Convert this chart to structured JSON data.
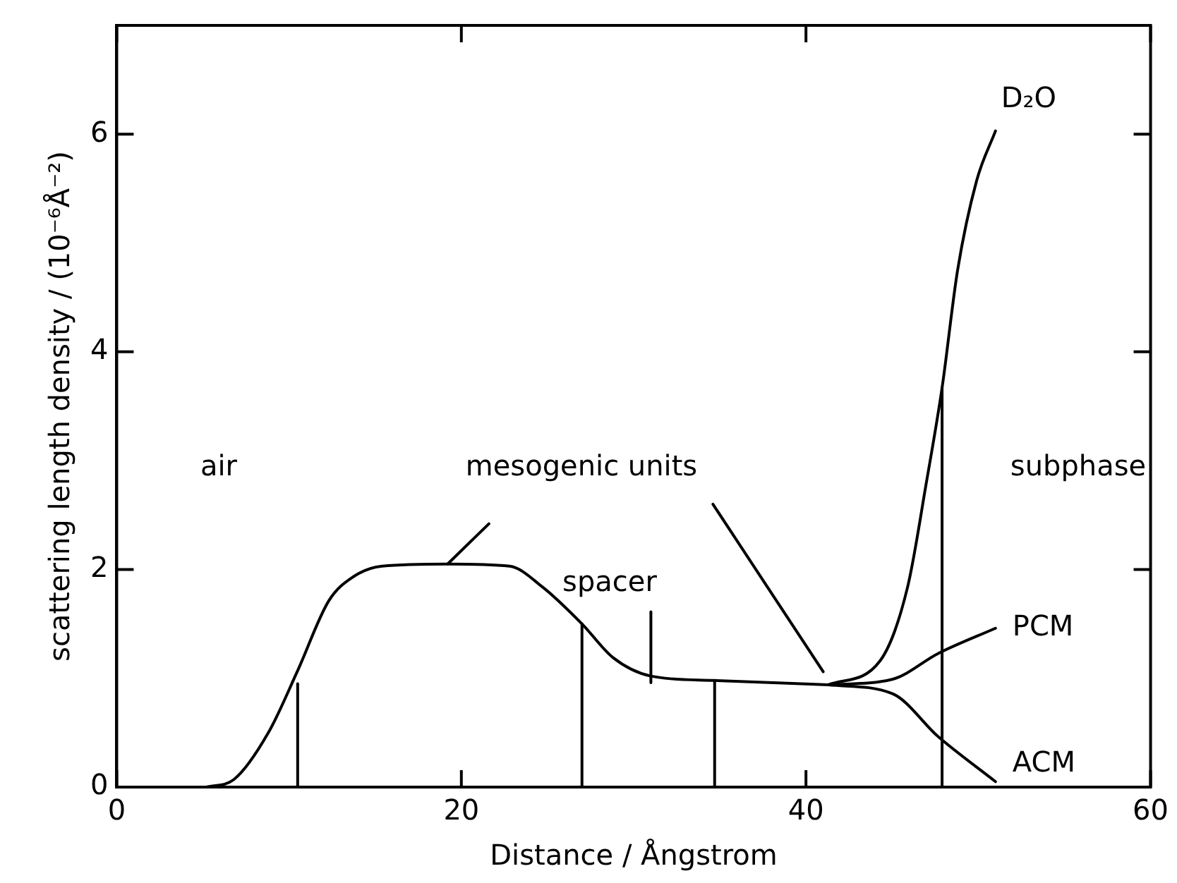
{
  "chart_data": {
    "type": "line",
    "xlabel": "Distance / Ångstrom",
    "ylabel": "scattering length density / (10⁻⁶Å⁻²)",
    "xlim": [
      0,
      60
    ],
    "xticks": [
      0,
      20,
      40,
      60
    ],
    "ylim": [
      0,
      7
    ],
    "yticks": [
      0,
      2,
      4,
      6
    ],
    "grid": false,
    "legend": false,
    "marker": "none",
    "line_style": "solid",
    "series": [
      {
        "color": "#000000",
        "x": [
          5.2,
          6.8,
          8.8,
          10.5,
          12.3,
          13.7,
          15.4,
          19.2,
          22.8,
          24.7,
          27.0,
          28.8,
          31.0,
          34.6,
          41.3
        ],
        "values": [
          0,
          0.07,
          0.5,
          1.07,
          1.71,
          1.93,
          2.03,
          2.05,
          2.03,
          1.84,
          1.5,
          1.19,
          1.02,
          0.98,
          0.94
        ]
      },
      {
        "name": "D₂O",
        "color": "#000000",
        "x": [
          41.3,
          44.3,
          45.9,
          47.0,
          47.9,
          48.8,
          49.9,
          51.0
        ],
        "values": [
          0.94,
          1.16,
          1.84,
          2.81,
          3.67,
          4.75,
          5.57,
          6.03
        ]
      },
      {
        "name": "PCM",
        "color": "#000000",
        "x": [
          41.3,
          45.0,
          47.7,
          51.0
        ],
        "values": [
          0.94,
          0.99,
          1.23,
          1.46
        ]
      },
      {
        "name": "ACM",
        "color": "#000000",
        "x": [
          41.3,
          45.0,
          47.7,
          51.0
        ],
        "values": [
          0.94,
          0.86,
          0.46,
          0.05
        ]
      },
      {
        "color": "#000000",
        "x": [
          10.5,
          10.5
        ],
        "values": [
          0,
          0.95
        ]
      },
      {
        "color": "#000000",
        "x": [
          27.0,
          27.0
        ],
        "values": [
          0,
          1.5
        ]
      },
      {
        "color": "#000000",
        "x": [
          31.0,
          31.0
        ],
        "values": [
          0.96,
          1.61
        ]
      },
      {
        "color": "#000000",
        "x": [
          34.7,
          34.7
        ],
        "values": [
          0,
          0.97
        ]
      },
      {
        "color": "#000000",
        "x": [
          47.9,
          47.9
        ],
        "values": [
          0,
          3.67
        ]
      },
      {
        "color": "#000000",
        "x": [
          19.2,
          21.6
        ],
        "values": [
          2.05,
          2.42
        ]
      },
      {
        "color": "#000000",
        "x": [
          34.6,
          41.0
        ],
        "values": [
          2.6,
          1.06
        ]
      }
    ],
    "annotations": [
      "air",
      "mesogenic units",
      "spacer",
      "subphase"
    ]
  }
}
